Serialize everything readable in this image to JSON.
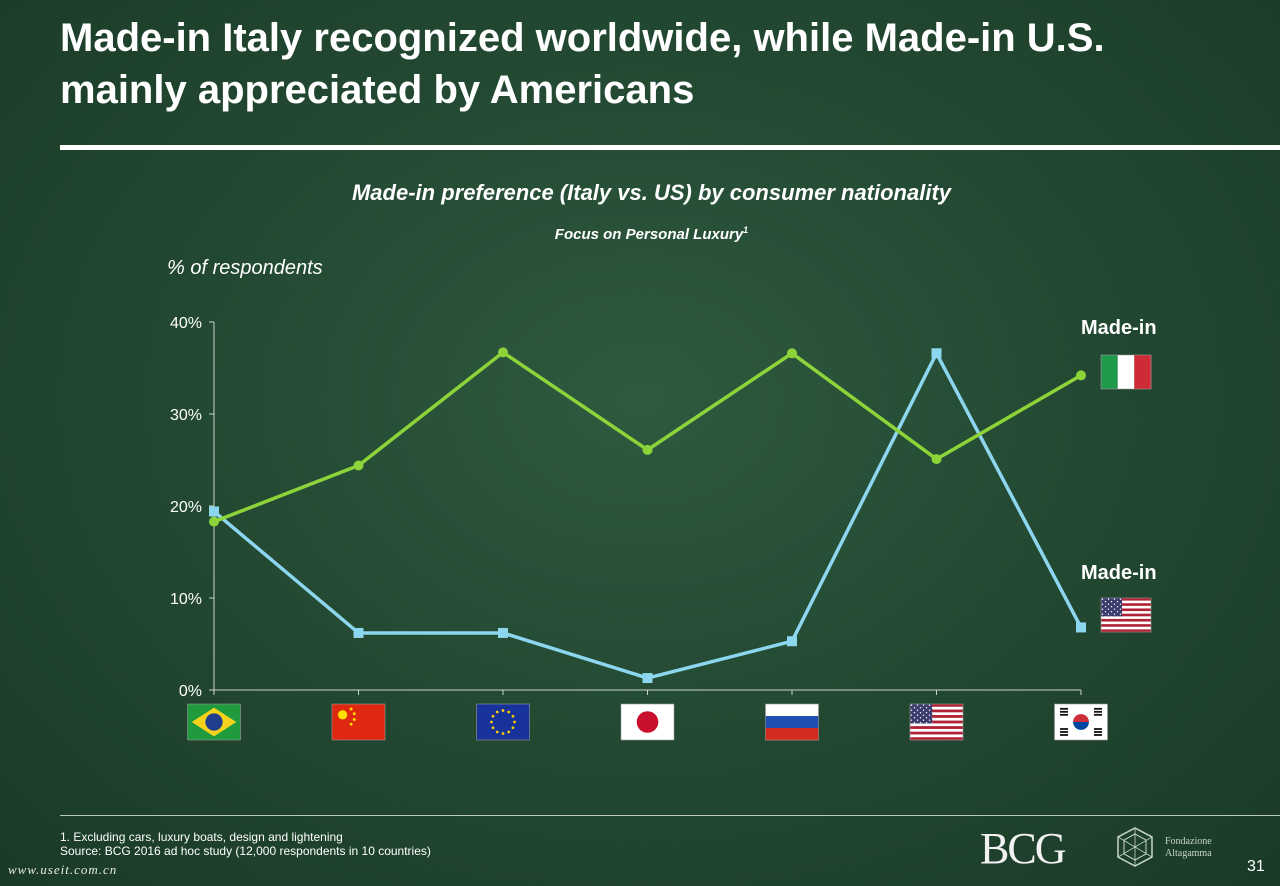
{
  "title": "Made-in Italy recognized worldwide, while Made-in U.S. mainly appreciated by Americans",
  "chart_data": {
    "type": "line",
    "title": "Made-in preference (Italy vs. US) by consumer nationality",
    "subtitle": "Focus on Personal Luxury",
    "subtitle_footnote_mark": "1",
    "ylabel": "% of respondents",
    "ylim": [
      0,
      40
    ],
    "yticks": [
      "0%",
      "10%",
      "20%",
      "30%",
      "40%"
    ],
    "ytick_values": [
      0,
      10,
      20,
      30,
      40
    ],
    "categories": [
      "brazil-flag",
      "china-flag",
      "eu-flag",
      "japan-flag",
      "russia-flag",
      "usa-flag",
      "korea-flag"
    ],
    "series": [
      {
        "name": "Made-in",
        "flag": "italy-flag",
        "color": "#8cd43a",
        "marker": "circle",
        "values": [
          18.3,
          24.4,
          36.7,
          26.1,
          36.6,
          25.1,
          34.2
        ]
      },
      {
        "name": "Made-in",
        "flag": "usa-flag",
        "color": "#8dd6ef",
        "marker": "square",
        "values": [
          19.4,
          6.2,
          6.2,
          1.3,
          5.3,
          36.6,
          6.8
        ]
      }
    ],
    "grid": false
  },
  "footnote": {
    "line1": "1. Excluding cars, luxury boats, design and lightening",
    "line2": "Source: BCG 2016 ad hoc study (12,000 respondents in 10 countries)"
  },
  "logos": {
    "bcg": "BCG",
    "fondazione_line1": "Fondazione",
    "fondazione_line2": "Altagamma"
  },
  "page_number": "31",
  "watermark": "www.useit.com.cn"
}
